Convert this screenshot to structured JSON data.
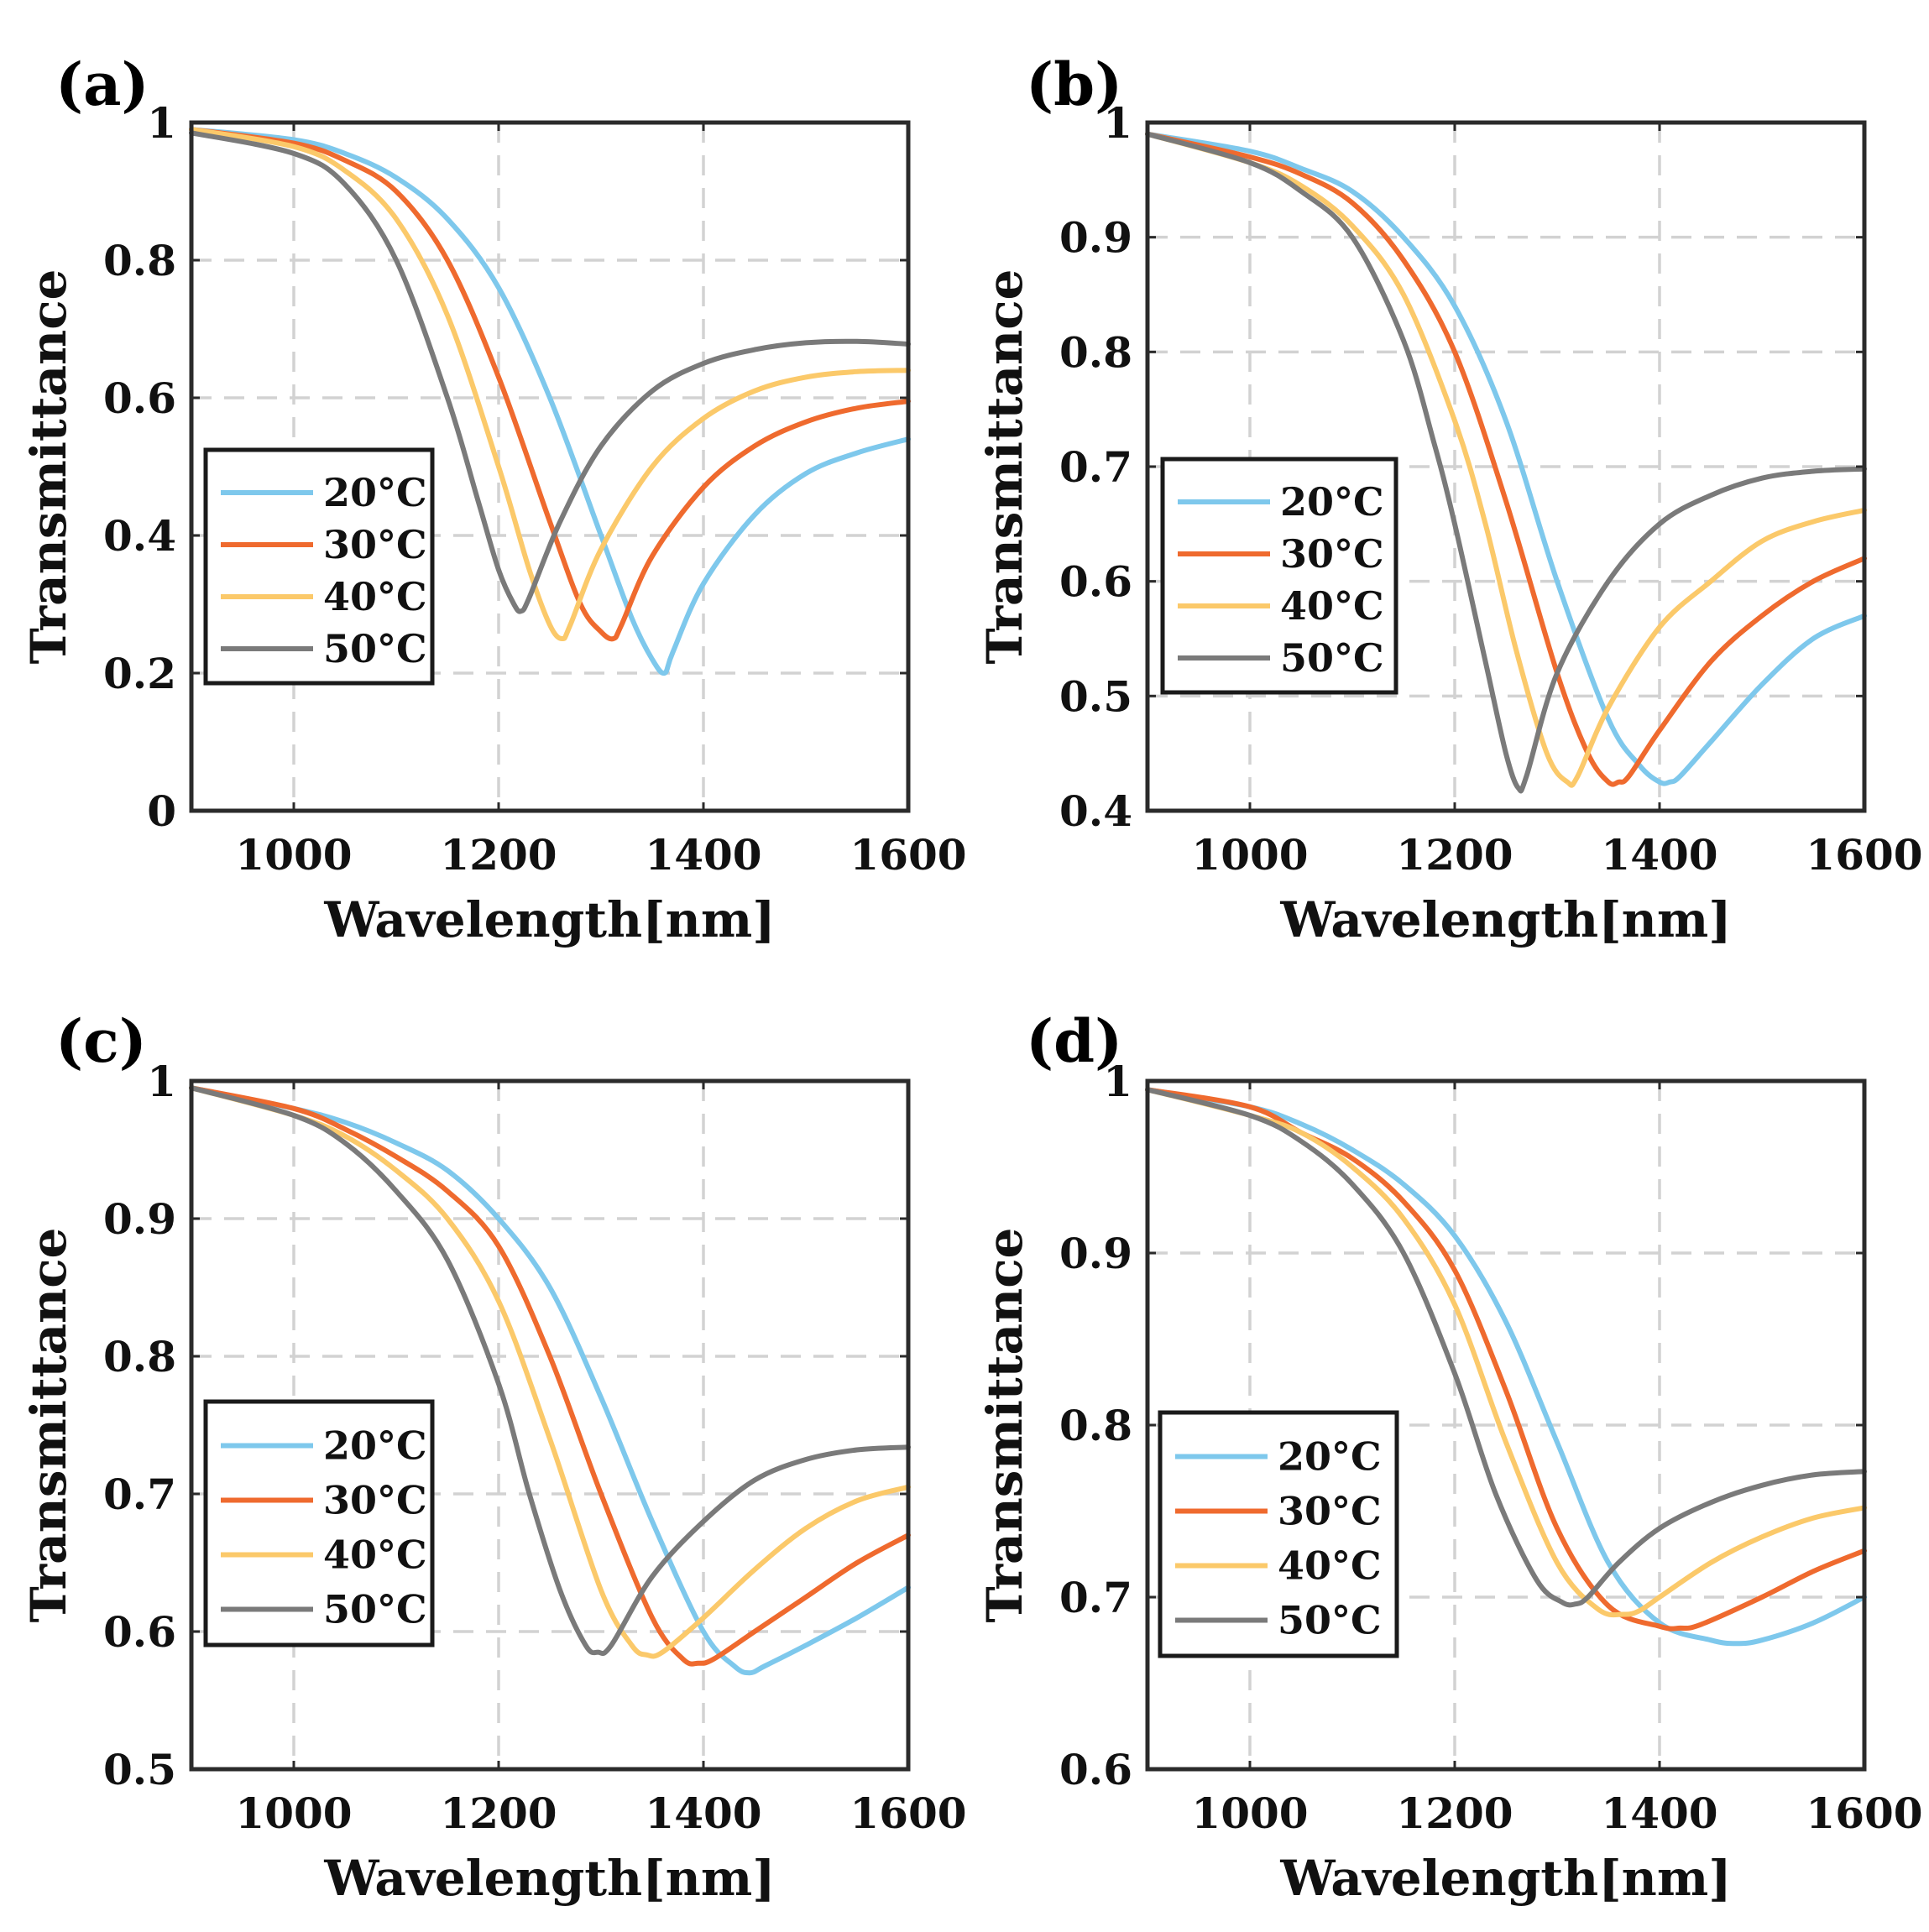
{
  "chart_data": [
    {
      "type": "line",
      "panel_label": "(a)",
      "xlabel": "Wavelength[nm]",
      "ylabel": "Transmittance",
      "xlim": [
        900,
        1600
      ],
      "ylim": [
        0,
        1
      ],
      "xticks": [
        1000,
        1200,
        1400,
        1600
      ],
      "xtick_labels": [
        "1000",
        "1200",
        "1400",
        "1600"
      ],
      "yticks": [
        0,
        0.2,
        0.4,
        0.6,
        0.8,
        1
      ],
      "ytick_labels": [
        "0",
        "0.2",
        "0.4",
        "0.6",
        "0.8",
        "1"
      ],
      "grid": true,
      "legend": "center-left",
      "series": [
        {
          "name": "20°C",
          "color": "#7ec8ec",
          "x": [
            900,
            1000,
            1050,
            1100,
            1150,
            1200,
            1250,
            1300,
            1330,
            1350,
            1362,
            1370,
            1400,
            1450,
            1500,
            1550,
            1600
          ],
          "y": [
            0.99,
            0.975,
            0.955,
            0.92,
            0.86,
            0.76,
            0.6,
            0.4,
            0.28,
            0.22,
            0.2,
            0.23,
            0.33,
            0.43,
            0.49,
            0.52,
            0.54
          ]
        },
        {
          "name": "30°C",
          "color": "#ef6a2e",
          "x": [
            900,
            1000,
            1050,
            1100,
            1150,
            1200,
            1250,
            1280,
            1300,
            1312,
            1320,
            1350,
            1400,
            1450,
            1500,
            1550,
            1600
          ],
          "y": [
            0.99,
            0.97,
            0.945,
            0.9,
            0.8,
            0.63,
            0.42,
            0.3,
            0.26,
            0.25,
            0.27,
            0.37,
            0.47,
            0.53,
            0.565,
            0.585,
            0.595
          ]
        },
        {
          "name": "40°C",
          "color": "#fbc96a",
          "x": [
            900,
            1000,
            1050,
            1100,
            1150,
            1200,
            1230,
            1250,
            1262,
            1270,
            1300,
            1350,
            1400,
            1450,
            1500,
            1550,
            1600
          ],
          "y": [
            0.99,
            0.965,
            0.93,
            0.86,
            0.72,
            0.5,
            0.35,
            0.27,
            0.25,
            0.27,
            0.38,
            0.5,
            0.57,
            0.61,
            0.63,
            0.638,
            0.64
          ]
        },
        {
          "name": "50°C",
          "color": "#7a7a7a",
          "x": [
            900,
            1000,
            1050,
            1100,
            1150,
            1180,
            1200,
            1215,
            1222,
            1230,
            1260,
            1300,
            1350,
            1400,
            1450,
            1500,
            1550,
            1600
          ],
          "y": [
            0.985,
            0.955,
            0.91,
            0.8,
            0.6,
            0.45,
            0.35,
            0.3,
            0.29,
            0.31,
            0.42,
            0.53,
            0.61,
            0.65,
            0.67,
            0.68,
            0.682,
            0.678
          ]
        }
      ]
    },
    {
      "type": "line",
      "panel_label": "(b)",
      "xlabel": "Wavelength[nm]",
      "ylabel": "Transmittance",
      "xlim": [
        900,
        1600
      ],
      "ylim": [
        0.4,
        1
      ],
      "xticks": [
        1000,
        1200,
        1400,
        1600
      ],
      "xtick_labels": [
        "1000",
        "1200",
        "1400",
        "1600"
      ],
      "yticks": [
        0.4,
        0.5,
        0.6,
        0.7,
        0.8,
        0.9,
        1
      ],
      "ytick_labels": [
        "0.4",
        "0.5",
        "0.6",
        "0.7",
        "0.8",
        "0.9",
        "1"
      ],
      "grid": true,
      "legend": "center-left",
      "series": [
        {
          "name": "20°C",
          "color": "#7ec8ec",
          "x": [
            900,
            1000,
            1050,
            1100,
            1150,
            1200,
            1250,
            1300,
            1350,
            1380,
            1400,
            1410,
            1420,
            1450,
            1500,
            1550,
            1600
          ],
          "y": [
            0.99,
            0.975,
            0.96,
            0.94,
            0.9,
            0.84,
            0.74,
            0.6,
            0.48,
            0.44,
            0.425,
            0.425,
            0.43,
            0.46,
            0.51,
            0.55,
            0.57
          ]
        },
        {
          "name": "30°C",
          "color": "#ef6a2e",
          "x": [
            900,
            1000,
            1050,
            1100,
            1150,
            1200,
            1250,
            1300,
            1330,
            1350,
            1360,
            1370,
            1400,
            1450,
            1500,
            1550,
            1600
          ],
          "y": [
            0.99,
            0.97,
            0.955,
            0.93,
            0.88,
            0.8,
            0.67,
            0.52,
            0.45,
            0.425,
            0.425,
            0.43,
            0.47,
            0.53,
            0.57,
            0.6,
            0.62
          ]
        },
        {
          "name": "40°C",
          "color": "#fbc96a",
          "x": [
            900,
            1000,
            1050,
            1100,
            1150,
            1200,
            1230,
            1260,
            1290,
            1310,
            1320,
            1350,
            1400,
            1450,
            1500,
            1550,
            1600
          ],
          "y": [
            0.99,
            0.965,
            0.945,
            0.91,
            0.85,
            0.74,
            0.65,
            0.54,
            0.45,
            0.425,
            0.43,
            0.49,
            0.56,
            0.6,
            0.635,
            0.652,
            0.662
          ]
        },
        {
          "name": "50°C",
          "color": "#7a7a7a",
          "x": [
            900,
            1000,
            1050,
            1100,
            1150,
            1180,
            1200,
            1230,
            1250,
            1262,
            1270,
            1300,
            1350,
            1400,
            1450,
            1500,
            1550,
            1600
          ],
          "y": [
            0.99,
            0.965,
            0.94,
            0.9,
            0.81,
            0.72,
            0.65,
            0.53,
            0.45,
            0.42,
            0.43,
            0.52,
            0.6,
            0.65,
            0.675,
            0.69,
            0.696,
            0.698
          ]
        }
      ]
    },
    {
      "type": "line",
      "panel_label": "(c)",
      "xlabel": "Wavelength[nm]",
      "ylabel": "Transmittance",
      "xlim": [
        900,
        1600
      ],
      "ylim": [
        0.5,
        1
      ],
      "xticks": [
        1000,
        1200,
        1400,
        1600
      ],
      "xtick_labels": [
        "1000",
        "1200",
        "1400",
        "1600"
      ],
      "yticks": [
        0.5,
        0.6,
        0.7,
        0.8,
        0.9,
        1
      ],
      "ytick_labels": [
        "0.5",
        "0.6",
        "0.7",
        "0.8",
        "0.9",
        "1"
      ],
      "grid": true,
      "legend": "bottom-left",
      "series": [
        {
          "name": "20°C",
          "color": "#7ec8ec",
          "x": [
            900,
            1000,
            1050,
            1100,
            1150,
            1200,
            1250,
            1300,
            1350,
            1400,
            1430,
            1445,
            1460,
            1500,
            1550,
            1600
          ],
          "y": [
            0.995,
            0.98,
            0.97,
            0.955,
            0.935,
            0.9,
            0.85,
            0.77,
            0.68,
            0.6,
            0.575,
            0.57,
            0.575,
            0.59,
            0.61,
            0.632
          ]
        },
        {
          "name": "30°C",
          "color": "#ef6a2e",
          "x": [
            900,
            1000,
            1050,
            1100,
            1150,
            1200,
            1250,
            1300,
            1350,
            1380,
            1395,
            1410,
            1450,
            1500,
            1550,
            1600
          ],
          "y": [
            0.995,
            0.98,
            0.965,
            0.945,
            0.92,
            0.88,
            0.8,
            0.7,
            0.61,
            0.58,
            0.577,
            0.58,
            0.6,
            0.625,
            0.65,
            0.67
          ]
        },
        {
          "name": "40°C",
          "color": "#fbc96a",
          "x": [
            900,
            1000,
            1050,
            1100,
            1150,
            1200,
            1250,
            1300,
            1330,
            1345,
            1360,
            1400,
            1450,
            1500,
            1550,
            1600
          ],
          "y": [
            0.995,
            0.975,
            0.96,
            0.935,
            0.9,
            0.84,
            0.74,
            0.63,
            0.59,
            0.583,
            0.585,
            0.61,
            0.645,
            0.675,
            0.695,
            0.705
          ]
        },
        {
          "name": "50°C",
          "color": "#7a7a7a",
          "x": [
            900,
            1000,
            1050,
            1100,
            1150,
            1200,
            1230,
            1260,
            1285,
            1297,
            1310,
            1350,
            1400,
            1450,
            1500,
            1550,
            1600
          ],
          "y": [
            0.995,
            0.975,
            0.955,
            0.92,
            0.87,
            0.78,
            0.7,
            0.63,
            0.59,
            0.585,
            0.59,
            0.64,
            0.68,
            0.71,
            0.725,
            0.732,
            0.734
          ]
        }
      ]
    },
    {
      "type": "line",
      "panel_label": "(d)",
      "xlabel": "Wavelength[nm]",
      "ylabel": "Transmittance",
      "xlim": [
        900,
        1600
      ],
      "ylim": [
        0.6,
        1
      ],
      "xticks": [
        1000,
        1200,
        1400,
        1600
      ],
      "xtick_labels": [
        "1000",
        "1200",
        "1400",
        "1600"
      ],
      "yticks": [
        0.6,
        0.7,
        0.8,
        0.9,
        1
      ],
      "ytick_labels": [
        "0.6",
        "0.7",
        "0.8",
        "0.9",
        "1"
      ],
      "grid": true,
      "legend": "bottom-left",
      "series": [
        {
          "name": "20°C",
          "color": "#7ec8ec",
          "x": [
            900,
            1000,
            1050,
            1100,
            1150,
            1200,
            1250,
            1300,
            1350,
            1400,
            1450,
            1475,
            1500,
            1550,
            1600
          ],
          "y": [
            0.995,
            0.985,
            0.975,
            0.96,
            0.94,
            0.91,
            0.86,
            0.79,
            0.72,
            0.685,
            0.675,
            0.673,
            0.675,
            0.685,
            0.7
          ]
        },
        {
          "name": "30°C",
          "color": "#ef6a2e",
          "x": [
            900,
            1000,
            1050,
            1100,
            1150,
            1200,
            1250,
            1300,
            1350,
            1400,
            1420,
            1440,
            1500,
            1550,
            1600
          ],
          "y": [
            0.995,
            0.985,
            0.97,
            0.955,
            0.93,
            0.89,
            0.82,
            0.74,
            0.695,
            0.683,
            0.682,
            0.684,
            0.7,
            0.715,
            0.727
          ]
        },
        {
          "name": "40°C",
          "color": "#fbc96a",
          "x": [
            900,
            1000,
            1050,
            1100,
            1150,
            1200,
            1250,
            1300,
            1340,
            1365,
            1380,
            1400,
            1450,
            1500,
            1550,
            1600
          ],
          "y": [
            0.995,
            0.98,
            0.97,
            0.95,
            0.92,
            0.87,
            0.79,
            0.72,
            0.693,
            0.69,
            0.692,
            0.7,
            0.72,
            0.735,
            0.746,
            0.752
          ]
        },
        {
          "name": "50°C",
          "color": "#7a7a7a",
          "x": [
            900,
            1000,
            1050,
            1100,
            1150,
            1200,
            1240,
            1280,
            1305,
            1318,
            1330,
            1360,
            1400,
            1450,
            1500,
            1550,
            1600
          ],
          "y": [
            0.995,
            0.98,
            0.965,
            0.94,
            0.9,
            0.83,
            0.76,
            0.71,
            0.697,
            0.696,
            0.7,
            0.72,
            0.74,
            0.755,
            0.765,
            0.771,
            0.773
          ]
        }
      ]
    }
  ]
}
